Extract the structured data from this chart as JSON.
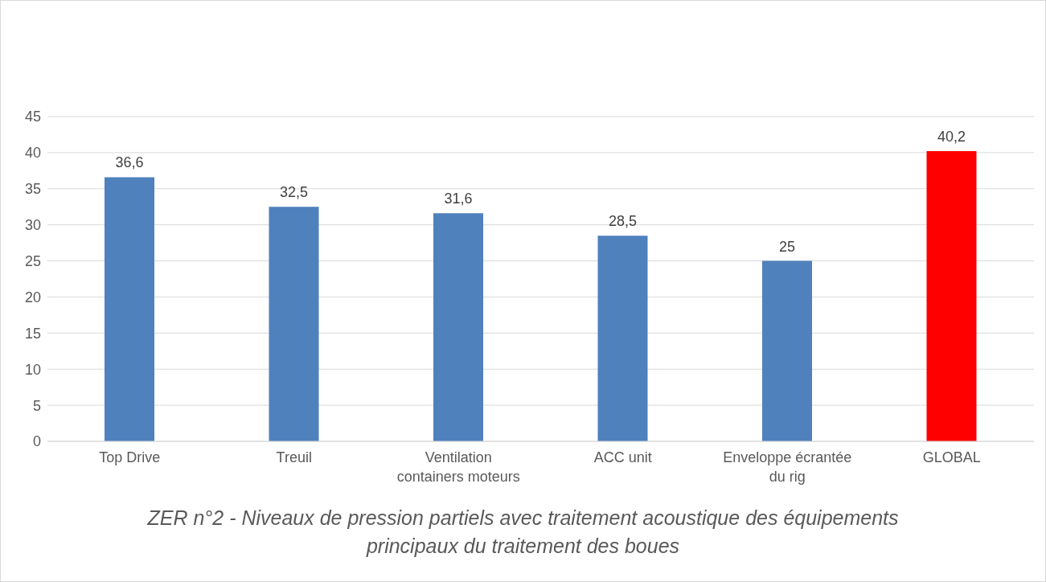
{
  "chart_data": {
    "type": "bar",
    "title": "ZER n°2 - Niveaux de pression partiels avec traitement acoustique des équipements principaux du traitement des boues",
    "categories": [
      "Top Drive",
      "Treuil",
      "Ventilation containers moteurs",
      "ACC unit",
      "Enveloppe écrantée du rig",
      "GLOBAL"
    ],
    "values": [
      36.6,
      32.5,
      31.6,
      28.5,
      25,
      40.2
    ],
    "value_labels": [
      "36,6",
      "32,5",
      "31,6",
      "28,5",
      "25",
      "40,2"
    ],
    "colors": [
      "#4f81bd",
      "#4f81bd",
      "#4f81bd",
      "#4f81bd",
      "#4f81bd",
      "#ff0000"
    ],
    "ylim": [
      0,
      45
    ],
    "yticks": [
      0,
      5,
      10,
      15,
      20,
      25,
      30,
      35,
      40,
      45
    ],
    "grid": "y",
    "legend": false
  }
}
